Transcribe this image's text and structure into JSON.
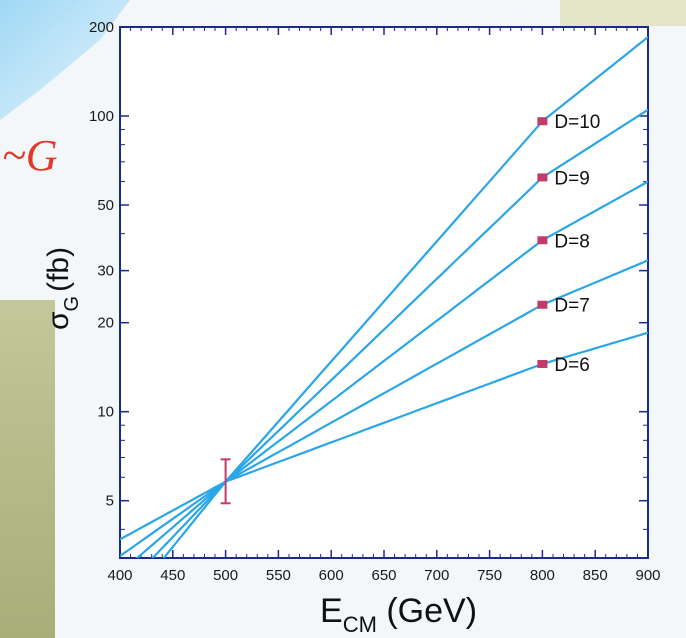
{
  "left_glyph": "~G",
  "chart_data": {
    "type": "line",
    "title": "",
    "xlabel": {
      "main": "E",
      "sub": "CM",
      "unit": " (GeV)"
    },
    "ylabel": {
      "main": "σ",
      "sub": "G",
      "unit": "(fb)"
    },
    "xlim": [
      400,
      900
    ],
    "ylim": [
      3.2,
      200
    ],
    "yscale": "log",
    "xticks": [
      400,
      450,
      500,
      550,
      600,
      650,
      700,
      750,
      800,
      850,
      900
    ],
    "yticks": [
      5,
      10,
      20,
      30,
      50,
      100,
      200
    ],
    "grid": false,
    "anchor": {
      "x": 500,
      "y": 5.8,
      "err": [
        4.9,
        6.9
      ]
    },
    "series": [
      {
        "name": "D=6",
        "x": [
          400,
          500,
          800,
          900
        ],
        "y": [
          3.7,
          5.8,
          14.5,
          18.5
        ],
        "marker_x": 800,
        "marker_y": 14.5
      },
      {
        "name": "D=7",
        "x": [
          400,
          500,
          800,
          900
        ],
        "y": [
          3.25,
          5.8,
          23.0,
          32.5
        ],
        "marker_x": 800,
        "marker_y": 23.0
      },
      {
        "name": "D=8",
        "x": [
          400,
          500,
          800,
          900
        ],
        "y": [
          2.85,
          5.8,
          38.0,
          60.0
        ],
        "marker_x": 800,
        "marker_y": 38.0
      },
      {
        "name": "D=9",
        "x": [
          400,
          500,
          800,
          900
        ],
        "y": [
          2.45,
          5.8,
          62.0,
          105.0
        ],
        "marker_x": 800,
        "marker_y": 62.0
      },
      {
        "name": "D=10",
        "x": [
          400,
          500,
          800,
          900
        ],
        "y": [
          2.1,
          5.8,
          96.0,
          185.0
        ],
        "marker_x": 800,
        "marker_y": 96.0
      }
    ],
    "colors": {
      "line": "#2aa6e8",
      "marker": "#c23a6a",
      "axis": "#1a2a8a"
    }
  }
}
